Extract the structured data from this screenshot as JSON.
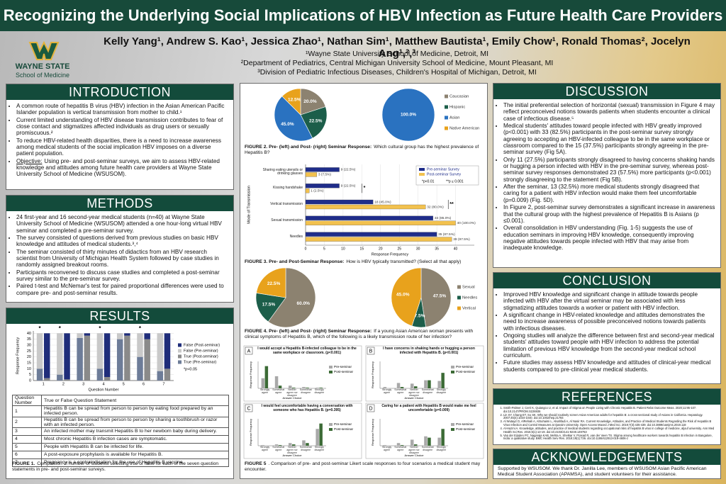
{
  "header": {
    "title": "Recognizing the Underlying Social Implications of HBV Infection as Future Health Care Providers",
    "authors": "Kelly Yang¹, Andrew S. Kao¹, Jessica Zhao¹, Nathan Sim¹, Matthew Bautista¹, Emily Chow¹, Ronald Thomas², Jocelyn Ang¹,²,³",
    "affiliations": [
      "¹Wayne State University School of Medicine, Detroit, MI",
      "²Department of Pediatrics, Central Michigan University School of Medicine, Mount Pleasant, MI",
      "³Division of Pediatric Infectious Diseases, Children's Hospital of Michigan, Detroit, MI"
    ],
    "logo_text": [
      "WAYNE STATE",
      "School of Medicine"
    ]
  },
  "introduction": {
    "heading": "INTRODUCTION",
    "bullets": [
      "A common route of hepatitis B virus (HBV) infection in the Asian American Pacific Islander population is vertical transmission from mother to child.¹",
      "Current limited understanding of HBV disease transmission contributes to fear of close contact and stigmatizes affected individuals as drug users or sexually promiscuous.²",
      "To reduce HBV-related health disparities, there is a need to increase awareness among medical students of the social implication HBV imposes on a diverse patient population.",
      {
        "lead": "Objective:",
        "text": "Using pre- and post-seminar surveys, we aim to assess HBV-related knowledge and attitudes among future health care providers at Wayne State University School of Medicine (WSUSOM)."
      }
    ]
  },
  "methods": {
    "heading": "METHODS",
    "bullets": [
      "24 first-year and 16 second-year medical students (n=40) at Wayne State University School of Medicine (WSUSOM) attended a one hour-long virtual HBV seminar and completed a pre-seminar survey.",
      "The survey consisted of questions derived from previous studies on basic HBV knowledge and attitudes of medical students.³,⁴",
      "The seminar consisted of thirty minutes of didactics from an HBV research scientist from University of Michigan Health System followed by case studies in randomly assigned breakout rooms.",
      "Participants reconvened to discuss case studies and completed a post-seminar survey similar to the pre-seminar survey.",
      "Paired t-test and McNemar's test for paired proportional differences were used to compare pre- and post-seminar results."
    ]
  },
  "results": {
    "heading": "RESULTS",
    "figure1": {
      "y_label": "Response Frequency",
      "x_label": "Question Number",
      "categories": [
        "1",
        "2",
        "3",
        "4",
        "5",
        "6",
        "7"
      ],
      "ylim": [
        0,
        42
      ],
      "yticks": [
        0,
        5,
        10,
        15,
        20,
        25,
        30,
        35,
        40
      ],
      "series": [
        {
          "name": "False (Post-seminar)",
          "color": "#1f2d7a",
          "values": [
            38,
            39,
            2,
            37,
            2,
            5,
            30
          ]
        },
        {
          "name": "False (Pre-seminar)",
          "color": "#c9c9c9",
          "values": [
            30,
            35,
            4,
            30,
            5,
            20,
            32
          ]
        },
        {
          "name": "True (Post-seminar)",
          "color": "#8a8a8a",
          "values": [
            2,
            1,
            38,
            3,
            38,
            35,
            10
          ]
        },
        {
          "name": "True (Pre-seminar)",
          "color": "#6d7c98",
          "values": [
            10,
            5,
            36,
            10,
            35,
            20,
            8
          ]
        }
      ],
      "annotations": [
        "*",
        "*",
        null,
        "*",
        null,
        "*",
        null
      ],
      "note": "*p<0.05"
    },
    "table": {
      "header": [
        "Question Number",
        "True or False Question Statement"
      ],
      "rows": [
        [
          "1",
          "Hepatitis B can be spread from person to person by eating food prepared by an infected person."
        ],
        [
          "2",
          "Hepatitis B can be spread from person to person by sharing a toothbrush or razor with an infected person."
        ],
        [
          "3",
          "An infected mother may transmit Hepatitis B to her newborn baby during delivery."
        ],
        [
          "4",
          "Most chronic Hepatitis B infection cases are symptomatic."
        ],
        [
          "5",
          "People with Hepatitis B can be infected for life."
        ],
        [
          "6",
          "A post-exposure prophylaxis is available for Hepatitis B."
        ],
        [
          "7",
          "Pregnancy is a contraindication for the use of Hepatitis B vaccine."
        ]
      ]
    },
    "caption_lead": "FIGURE 1.",
    "caption": "Comparison of number of students selecting true or false for each of the seven question statements in pre- and post-seminar surveys."
  },
  "figure2": {
    "categories": [
      "Caucasian",
      "Hispanic",
      "Asian",
      "Native American"
    ],
    "colors": [
      "#8c8270",
      "#1c5e4a",
      "#2a72c0",
      "#e8a21c"
    ],
    "pies": [
      {
        "values": [
          20.0,
          22.5,
          45.0,
          12.5
        ],
        "value_labels": [
          "20.0%",
          "22.5%",
          "45.0%",
          "12.5%"
        ]
      },
      {
        "values": [
          0,
          0,
          100.0,
          0
        ],
        "value_labels": [
          null,
          null,
          "100.0%",
          null
        ]
      }
    ],
    "caption_lead": "FIGURE 2. Pre- (left) and Post- (right) Seminar Response:",
    "caption": "Which cultural group has the highest prevalence of Hepatitis B?"
  },
  "figure3": {
    "y_label": "Mode of Transmission",
    "x_label": "Response Frequency",
    "categories": [
      "Sharing eating utensils or drinking glasses",
      "Kissing handshake",
      "Vertical transmission",
      "Sexual transmission",
      "Needles"
    ],
    "series": [
      {
        "name": "Pre-seminar Survey",
        "color": "#1f2d8a",
        "values": [
          9,
          9,
          18,
          34,
          35
        ],
        "value_labels": [
          "9 (22.5%)",
          "9 (22.5%)",
          "18 (45.0%)",
          "34 (85.0%)",
          "35 (87.5%)"
        ]
      },
      {
        "name": "Post-seminar Survey",
        "color": "#f2c14e",
        "values": [
          3,
          1,
          32,
          40,
          39
        ],
        "value_labels": [
          "3 (7.5%)",
          "1 (2.5%)",
          "32 (80.0%)",
          "40 (100.0%)",
          "39 (97.5%)"
        ]
      }
    ],
    "xlim": [
      0,
      45
    ],
    "xticks": [
      0,
      5,
      10,
      15,
      20,
      25,
      30,
      35,
      40
    ],
    "annotations": [
      null,
      "*",
      "**",
      null,
      null
    ],
    "notes": [
      "*p<0.01",
      "**p ≤ 0.001"
    ],
    "caption_lead": "FIGURE 3. Pre- and Post-Seminar Response:",
    "caption": "How is HBV typically transmitted? (Select all that apply)"
  },
  "figure4": {
    "categories": [
      "Sexual",
      "Needles",
      "Vertical"
    ],
    "colors": [
      "#8c8270",
      "#1c5e4a",
      "#e8a21c"
    ],
    "pies": [
      {
        "values": [
          60.0,
          17.5,
          22.5
        ],
        "value_labels": [
          "60.0%",
          "17.5%",
          "22.5%"
        ]
      },
      {
        "values": [
          47.5,
          7.5,
          45.0
        ],
        "value_labels": [
          "47.5%",
          "7.5%",
          "45.0%"
        ]
      }
    ],
    "caption_lead": "FIGURE 4. Pre- (left) and Post- (right) Seminar Response:",
    "caption": "If a young Asian American woman presents with clinical symptoms of Hepatitis B, which of the following is a likely transmission route of her infection?"
  },
  "figure5": {
    "y_label": "Response Frequency",
    "x_label": "Answer Choice",
    "categories": [
      "Strongly agree",
      "Somewhat agree",
      "Neither agree nor disagree",
      "Somewhat disagree",
      "Strongly disagree"
    ],
    "legend": [
      "Pre-seminar",
      "Post-seminar"
    ],
    "colors": [
      "#a9a9a9",
      "#3c6b36"
    ],
    "ylim": [
      0,
      100
    ],
    "panels": [
      {
        "letter": "A",
        "title": "I would accept a Hepatitis B-infected colleague to be in the same workplace or classroom. (p<0.001)",
        "pre": [
          37.5,
          45.0,
          10.0,
          5.0,
          2.5
        ],
        "post": [
          82.5,
          10.0,
          2.5,
          2.5,
          2.5
        ]
      },
      {
        "letter": "B",
        "title": "I have concerns in shaking hands or hugging a person infected with Hepatitis B. (p<0.001)",
        "pre": [
          5.0,
          20.0,
          17.5,
          30.0,
          27.5
        ],
        "post": [
          0,
          5.0,
          7.5,
          30.0,
          57.5
        ]
      },
      {
        "letter": "C",
        "title": "I would feel uncomfortable having a conversation with someone who has Hepatitis B. (p=0.395)",
        "pre": [
          2.5,
          5.0,
          10.0,
          20.0,
          62.5
        ],
        "post": [
          0,
          2.5,
          5.0,
          10.0,
          82.5
        ]
      },
      {
        "letter": "D",
        "title": "Caring for a patient with Hepatitis B would make me feel uncomfortable (p=0.009)",
        "pre": [
          2.5,
          10.0,
          22.5,
          35.0,
          30.0
        ],
        "post": [
          0,
          2.5,
          5.0,
          30.0,
          62.5
        ]
      }
    ],
    "caption_lead": "FIGURE 5",
    "caption": ". Comparison of pre- and post-seminar Likert scale responses to four scenarios a medical student may encounter."
  },
  "discussion": {
    "heading": "DISCUSSION",
    "bullets": [
      "The initial preferential selection of horizontal (sexual) transmission in Figure 4 may reflect preconceived notions towards patients when students encounter a clinical case of infectious disease.⁵",
      "Medical students' attitudes toward people infected with HBV greatly improved (p<0.001) with 33 (82.5%) participants in the post-seminar survey strongly agreeing to accepting an HBV-infected colleague to be in the same workplace or classroom compared to the 15 (37.5%) participants strongly agreeing in the pre-seminar survey (Fig 5A).",
      "Only 11 (27.5%) participants strongly disagreed to having concerns shaking hands or hugging a person infected with HBV in the pre-seminar survey, whereas post-seminar survey responses demonstrated 23 (57.5%) more participants (p<0.001) strongly disagreeing to the statement (Fig 5B).",
      "After the seminar, 13 (32.5%) more medical students strongly disagreed that caring for a patient with HBV infection would make them feel uncomfortable (p=0.009) (Fig. 5D).",
      "In Figure 2, post-seminar survey demonstrates a significant increase in awareness that the cultural group with the highest prevalence of Hepatitis B is Asians (p ≤0.001).",
      "Overall consolidation in HBV understanding (Fig. 1-5) suggests the use of education seminars in improving HBV knowledge, consequently improving negative attitudes towards people infected with HBV that may arise from inadequate knowledge."
    ]
  },
  "conclusion": {
    "heading": "CONCLUSION",
    "bullets": [
      "Improved HBV knowledge and significant change in attitude towards people infected with HBV after the virtual seminar may be associated with less stigmatizing attitudes towards a worker or patient with HBV infection.",
      "A significant change in HBV-related knowledge and attitudes demonstrates the need to increase awareness of possible preconceived notions towards patients with infectious diseases.",
      "Ongoing studies will analyze the difference between first and second-year medical students' attitudes toward people with HBV infection to address the potential limitation of previous HBV knowledge from the second-year medical school curriculum.",
      "Future studies may assess HBV knowledge and attitudes of clinical-year medical students compared to pre-clinical year medical students."
    ]
  },
  "references": {
    "heading": "REFERENCES",
    "items": [
      "Smith-Palmer J, Cerri K, Quiangco U, et al. Impact of Stigma on People Living with Chronic Hepatitis B. Patient Relat Outcome Meas. 2020;11:95-107. doi:10.2147/PROM.S226936",
      "Lin SY, Chang ET, So SK. Why we should routinely screen Asian American adults for hepatitis B: a cross-sectional study of Asians in California. Hepatology. 2007;46(4):1034-1040. doi:10.1002/hep.21784",
      "Al Wutayd O, AlRehaili A, AlSuhaimi L, Alsahfadi A, Al Nasir RA. Current Knowledge, Attitudes, and Practice of Medical Students Regarding the Risk of Hepatitis B Virus Infection and Control Measures at Qassim University. Open Access Maced J Med Sci. 2019;7(3):435-439. doi:10.3889/oamjms.2019.118",
      "Al-Hazmi A. Knowledge, attitudes, and practice of medical students regarding occupational risks of hepatitis B virus in college of medicine, aljouf university. Ann Med Health Sci Res. 2015;5(1):13-19. doi:10.4103/2141-9248.149763",
      "Van der Eijnden PC, Nagaraja KAB, Mehta A, Shetkar V, Prasad R, van der Veen TS. Stigma among healthcare workers towards hepatitis B infection in Bangalore, India: a qualitative study. BMC Health Serv Res. 2019;19(1):736. doi:10.1186/s12913-019-4606-z"
    ]
  },
  "acknowledgements": {
    "heading": "ACKNOWLEDGEMENTS",
    "text": "Supported by WSUSOM. We thank Dr. Janilla Lee, members of WSUSOM Asian Pacific American Medical Student Association (APAMSA), and student volunteers for their assistance."
  }
}
